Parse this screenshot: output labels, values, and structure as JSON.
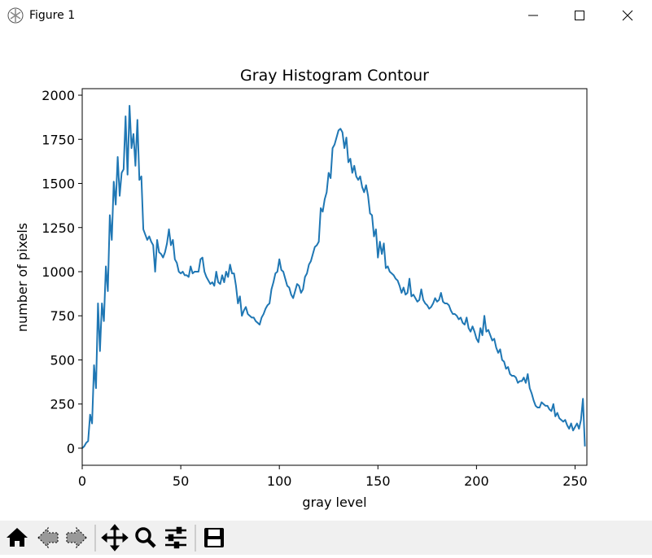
{
  "window": {
    "title": "Figure 1"
  },
  "chart_data": {
    "type": "line",
    "title": "Gray Histogram Contour",
    "xlabel": "gray level",
    "ylabel": "number of pixels",
    "xlim": [
      0,
      256
    ],
    "ylim": [
      -97,
      2037
    ],
    "xticks": [
      0,
      50,
      100,
      150,
      200,
      250
    ],
    "yticks": [
      0,
      250,
      500,
      750,
      1000,
      1250,
      1500,
      1750,
      2000
    ],
    "grid": false,
    "x": [
      0,
      1,
      2,
      3,
      4,
      5,
      6,
      7,
      8,
      9,
      10,
      11,
      12,
      13,
      14,
      15,
      16,
      17,
      18,
      19,
      20,
      21,
      22,
      23,
      24,
      25,
      26,
      27,
      28,
      29,
      30,
      31,
      32,
      33,
      34,
      35,
      36,
      37,
      38,
      39,
      40,
      41,
      42,
      43,
      44,
      45,
      46,
      47,
      48,
      49,
      50,
      51,
      52,
      53,
      54,
      55,
      56,
      57,
      58,
      59,
      60,
      61,
      62,
      63,
      64,
      65,
      66,
      67,
      68,
      69,
      70,
      71,
      72,
      73,
      74,
      75,
      76,
      77,
      78,
      79,
      80,
      81,
      82,
      83,
      84,
      85,
      86,
      87,
      88,
      89,
      90,
      91,
      92,
      93,
      94,
      95,
      96,
      97,
      98,
      99,
      100,
      101,
      102,
      103,
      104,
      105,
      106,
      107,
      108,
      109,
      110,
      111,
      112,
      113,
      114,
      115,
      116,
      117,
      118,
      119,
      120,
      121,
      122,
      123,
      124,
      125,
      126,
      127,
      128,
      129,
      130,
      131,
      132,
      133,
      134,
      135,
      136,
      137,
      138,
      139,
      140,
      141,
      142,
      143,
      144,
      145,
      146,
      147,
      148,
      149,
      150,
      151,
      152,
      153,
      154,
      155,
      156,
      157,
      158,
      159,
      160,
      161,
      162,
      163,
      164,
      165,
      166,
      167,
      168,
      169,
      170,
      171,
      172,
      173,
      174,
      175,
      176,
      177,
      178,
      179,
      180,
      181,
      182,
      183,
      184,
      185,
      186,
      187,
      188,
      189,
      190,
      191,
      192,
      193,
      194,
      195,
      196,
      197,
      198,
      199,
      200,
      201,
      202,
      203,
      204,
      205,
      206,
      207,
      208,
      209,
      210,
      211,
      212,
      213,
      214,
      215,
      216,
      217,
      218,
      219,
      220,
      221,
      222,
      223,
      224,
      225,
      226,
      227,
      228,
      229,
      230,
      231,
      232,
      233,
      234,
      235,
      236,
      237,
      238,
      239,
      240,
      241,
      242,
      243,
      244,
      245,
      246,
      247,
      248,
      249,
      250,
      251,
      252,
      253,
      254,
      255
    ],
    "series": [
      {
        "color": "#1f77b4",
        "values": [
          0,
          10,
          30,
          40,
          190,
          140,
          470,
          340,
          820,
          550,
          820,
          720,
          1030,
          890,
          1320,
          1180,
          1510,
          1380,
          1650,
          1430,
          1560,
          1580,
          1880,
          1550,
          1940,
          1700,
          1780,
          1600,
          1860,
          1520,
          1540,
          1240,
          1210,
          1180,
          1200,
          1170,
          1150,
          1000,
          1180,
          1110,
          1100,
          1080,
          1110,
          1160,
          1240,
          1150,
          1180,
          1070,
          1050,
          1000,
          990,
          1000,
          980,
          980,
          970,
          1030,
          990,
          1000,
          1000,
          1000,
          1070,
          1080,
          1000,
          970,
          950,
          930,
          940,
          920,
          1000,
          940,
          930,
          980,
          940,
          1000,
          970,
          1040,
          990,
          990,
          920,
          820,
          860,
          750,
          780,
          800,
          760,
          750,
          740,
          740,
          720,
          710,
          700,
          740,
          760,
          790,
          810,
          820,
          900,
          940,
          990,
          1000,
          1070,
          1010,
          1000,
          960,
          920,
          910,
          870,
          850,
          890,
          930,
          920,
          880,
          900,
          970,
          990,
          1040,
          1060,
          1100,
          1140,
          1150,
          1170,
          1360,
          1340,
          1410,
          1450,
          1560,
          1530,
          1700,
          1720,
          1760,
          1800,
          1810,
          1790,
          1700,
          1760,
          1620,
          1640,
          1560,
          1600,
          1540,
          1520,
          1540,
          1480,
          1450,
          1490,
          1430,
          1330,
          1320,
          1200,
          1240,
          1080,
          1170,
          1100,
          1160,
          1020,
          1030,
          1000,
          990,
          980,
          960,
          950,
          920,
          880,
          910,
          870,
          880,
          960,
          860,
          870,
          850,
          830,
          840,
          900,
          840,
          820,
          810,
          790,
          800,
          820,
          850,
          830,
          840,
          880,
          830,
          820,
          820,
          810,
          780,
          760,
          760,
          750,
          730,
          740,
          710,
          700,
          740,
          680,
          660,
          690,
          660,
          620,
          600,
          680,
          640,
          750,
          660,
          670,
          640,
          610,
          620,
          570,
          540,
          560,
          500,
          490,
          450,
          460,
          420,
          410,
          410,
          400,
          370,
          380,
          380,
          400,
          370,
          420,
          340,
          310,
          270,
          240,
          230,
          230,
          260,
          250,
          240,
          240,
          220,
          210,
          250,
          180,
          200,
          170,
          160,
          150,
          160,
          130,
          110,
          140,
          100,
          120,
          140,
          110,
          160,
          280,
          10
        ]
      }
    ]
  }
}
